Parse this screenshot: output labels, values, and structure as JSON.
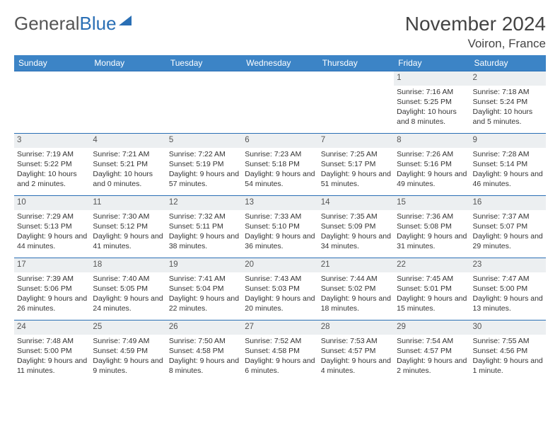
{
  "brand": {
    "part1": "General",
    "part2": "Blue"
  },
  "title": "November 2024",
  "location": "Voiron, France",
  "colors": {
    "header_bg": "#3c84c6",
    "header_text": "#ffffff",
    "border": "#2a6fb5",
    "daynum_bg": "#eceff1",
    "text": "#333333"
  },
  "layout": {
    "weeks": 5,
    "first_day_col": 5,
    "days_in_month": 30
  },
  "day_headers": [
    "Sunday",
    "Monday",
    "Tuesday",
    "Wednesday",
    "Thursday",
    "Friday",
    "Saturday"
  ],
  "days": [
    {
      "n": 1,
      "sunrise": "7:16 AM",
      "sunset": "5:25 PM",
      "daylight": "10 hours and 8 minutes."
    },
    {
      "n": 2,
      "sunrise": "7:18 AM",
      "sunset": "5:24 PM",
      "daylight": "10 hours and 5 minutes."
    },
    {
      "n": 3,
      "sunrise": "7:19 AM",
      "sunset": "5:22 PM",
      "daylight": "10 hours and 2 minutes."
    },
    {
      "n": 4,
      "sunrise": "7:21 AM",
      "sunset": "5:21 PM",
      "daylight": "10 hours and 0 minutes."
    },
    {
      "n": 5,
      "sunrise": "7:22 AM",
      "sunset": "5:19 PM",
      "daylight": "9 hours and 57 minutes."
    },
    {
      "n": 6,
      "sunrise": "7:23 AM",
      "sunset": "5:18 PM",
      "daylight": "9 hours and 54 minutes."
    },
    {
      "n": 7,
      "sunrise": "7:25 AM",
      "sunset": "5:17 PM",
      "daylight": "9 hours and 51 minutes."
    },
    {
      "n": 8,
      "sunrise": "7:26 AM",
      "sunset": "5:16 PM",
      "daylight": "9 hours and 49 minutes."
    },
    {
      "n": 9,
      "sunrise": "7:28 AM",
      "sunset": "5:14 PM",
      "daylight": "9 hours and 46 minutes."
    },
    {
      "n": 10,
      "sunrise": "7:29 AM",
      "sunset": "5:13 PM",
      "daylight": "9 hours and 44 minutes."
    },
    {
      "n": 11,
      "sunrise": "7:30 AM",
      "sunset": "5:12 PM",
      "daylight": "9 hours and 41 minutes."
    },
    {
      "n": 12,
      "sunrise": "7:32 AM",
      "sunset": "5:11 PM",
      "daylight": "9 hours and 38 minutes."
    },
    {
      "n": 13,
      "sunrise": "7:33 AM",
      "sunset": "5:10 PM",
      "daylight": "9 hours and 36 minutes."
    },
    {
      "n": 14,
      "sunrise": "7:35 AM",
      "sunset": "5:09 PM",
      "daylight": "9 hours and 34 minutes."
    },
    {
      "n": 15,
      "sunrise": "7:36 AM",
      "sunset": "5:08 PM",
      "daylight": "9 hours and 31 minutes."
    },
    {
      "n": 16,
      "sunrise": "7:37 AM",
      "sunset": "5:07 PM",
      "daylight": "9 hours and 29 minutes."
    },
    {
      "n": 17,
      "sunrise": "7:39 AM",
      "sunset": "5:06 PM",
      "daylight": "9 hours and 26 minutes."
    },
    {
      "n": 18,
      "sunrise": "7:40 AM",
      "sunset": "5:05 PM",
      "daylight": "9 hours and 24 minutes."
    },
    {
      "n": 19,
      "sunrise": "7:41 AM",
      "sunset": "5:04 PM",
      "daylight": "9 hours and 22 minutes."
    },
    {
      "n": 20,
      "sunrise": "7:43 AM",
      "sunset": "5:03 PM",
      "daylight": "9 hours and 20 minutes."
    },
    {
      "n": 21,
      "sunrise": "7:44 AM",
      "sunset": "5:02 PM",
      "daylight": "9 hours and 18 minutes."
    },
    {
      "n": 22,
      "sunrise": "7:45 AM",
      "sunset": "5:01 PM",
      "daylight": "9 hours and 15 minutes."
    },
    {
      "n": 23,
      "sunrise": "7:47 AM",
      "sunset": "5:00 PM",
      "daylight": "9 hours and 13 minutes."
    },
    {
      "n": 24,
      "sunrise": "7:48 AM",
      "sunset": "5:00 PM",
      "daylight": "9 hours and 11 minutes."
    },
    {
      "n": 25,
      "sunrise": "7:49 AM",
      "sunset": "4:59 PM",
      "daylight": "9 hours and 9 minutes."
    },
    {
      "n": 26,
      "sunrise": "7:50 AM",
      "sunset": "4:58 PM",
      "daylight": "9 hours and 8 minutes."
    },
    {
      "n": 27,
      "sunrise": "7:52 AM",
      "sunset": "4:58 PM",
      "daylight": "9 hours and 6 minutes."
    },
    {
      "n": 28,
      "sunrise": "7:53 AM",
      "sunset": "4:57 PM",
      "daylight": "9 hours and 4 minutes."
    },
    {
      "n": 29,
      "sunrise": "7:54 AM",
      "sunset": "4:57 PM",
      "daylight": "9 hours and 2 minutes."
    },
    {
      "n": 30,
      "sunrise": "7:55 AM",
      "sunset": "4:56 PM",
      "daylight": "9 hours and 1 minute."
    }
  ],
  "labels": {
    "sunrise": "Sunrise:",
    "sunset": "Sunset:",
    "daylight": "Daylight:"
  }
}
